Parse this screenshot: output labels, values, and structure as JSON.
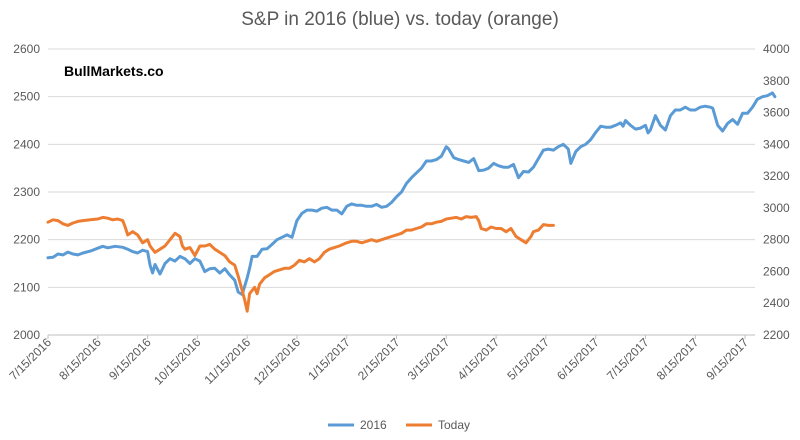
{
  "title": "S&P in 2016 (blue) vs. today (orange)",
  "watermark": "BullMarkets.co",
  "chart_data": {
    "type": "line",
    "title": "S&P in 2016 (blue) vs. today (orange)",
    "x_tick_labels": [
      "7/15/2016",
      "8/15/2016",
      "9/15/2016",
      "10/15/2016",
      "11/15/2016",
      "12/15/2016",
      "1/15/2017",
      "2/15/2017",
      "3/15/2017",
      "4/15/2017",
      "5/15/2017",
      "6/15/2017",
      "7/15/2017",
      "8/15/2017",
      "9/15/2017"
    ],
    "x_range": [
      0,
      14.2
    ],
    "y_left": {
      "range": [
        2000,
        2600
      ],
      "ticks": [
        2000,
        2100,
        2200,
        2300,
        2400,
        2500,
        2600
      ]
    },
    "y_right": {
      "range": [
        2200,
        4000
      ],
      "ticks": [
        2200,
        2400,
        2600,
        2800,
        3000,
        3200,
        3400,
        3600,
        3800,
        4000
      ]
    },
    "grid": true,
    "legend_position": "bottom",
    "series": [
      {
        "name": "2016",
        "color": "#5b9bd5",
        "axis": "left",
        "points": [
          [
            0.0,
            2162
          ],
          [
            0.1,
            2163
          ],
          [
            0.2,
            2170
          ],
          [
            0.3,
            2168
          ],
          [
            0.4,
            2174
          ],
          [
            0.5,
            2170
          ],
          [
            0.6,
            2168
          ],
          [
            0.7,
            2172
          ],
          [
            0.85,
            2176
          ],
          [
            1.0,
            2182
          ],
          [
            1.1,
            2186
          ],
          [
            1.2,
            2183
          ],
          [
            1.35,
            2186
          ],
          [
            1.5,
            2184
          ],
          [
            1.6,
            2180
          ],
          [
            1.7,
            2175
          ],
          [
            1.8,
            2172
          ],
          [
            1.9,
            2178
          ],
          [
            2.0,
            2175
          ],
          [
            2.05,
            2146
          ],
          [
            2.1,
            2130
          ],
          [
            2.15,
            2148
          ],
          [
            2.25,
            2128
          ],
          [
            2.35,
            2150
          ],
          [
            2.45,
            2160
          ],
          [
            2.55,
            2155
          ],
          [
            2.65,
            2165
          ],
          [
            2.75,
            2160
          ],
          [
            2.85,
            2150
          ],
          [
            2.95,
            2160
          ],
          [
            3.05,
            2155
          ],
          [
            3.15,
            2133
          ],
          [
            3.25,
            2139
          ],
          [
            3.35,
            2140
          ],
          [
            3.45,
            2130
          ],
          [
            3.55,
            2139
          ],
          [
            3.65,
            2126
          ],
          [
            3.75,
            2115
          ],
          [
            3.82,
            2090
          ],
          [
            3.9,
            2085
          ],
          [
            4.0,
            2120
          ],
          [
            4.05,
            2140
          ],
          [
            4.1,
            2165
          ],
          [
            4.2,
            2165
          ],
          [
            4.3,
            2180
          ],
          [
            4.4,
            2181
          ],
          [
            4.5,
            2190
          ],
          [
            4.6,
            2200
          ],
          [
            4.7,
            2205
          ],
          [
            4.8,
            2210
          ],
          [
            4.9,
            2205
          ],
          [
            5.0,
            2240
          ],
          [
            5.1,
            2255
          ],
          [
            5.2,
            2262
          ],
          [
            5.3,
            2262
          ],
          [
            5.4,
            2260
          ],
          [
            5.5,
            2266
          ],
          [
            5.6,
            2268
          ],
          [
            5.7,
            2262
          ],
          [
            5.8,
            2262
          ],
          [
            5.9,
            2254
          ],
          [
            6.0,
            2270
          ],
          [
            6.1,
            2275
          ],
          [
            6.2,
            2272
          ],
          [
            6.3,
            2272
          ],
          [
            6.4,
            2270
          ],
          [
            6.5,
            2270
          ],
          [
            6.6,
            2274
          ],
          [
            6.7,
            2268
          ],
          [
            6.8,
            2270
          ],
          [
            6.9,
            2278
          ],
          [
            7.0,
            2290
          ],
          [
            7.1,
            2300
          ],
          [
            7.2,
            2318
          ],
          [
            7.3,
            2330
          ],
          [
            7.4,
            2340
          ],
          [
            7.5,
            2350
          ],
          [
            7.6,
            2365
          ],
          [
            7.7,
            2365
          ],
          [
            7.8,
            2368
          ],
          [
            7.9,
            2375
          ],
          [
            8.0,
            2395
          ],
          [
            8.05,
            2390
          ],
          [
            8.15,
            2372
          ],
          [
            8.25,
            2368
          ],
          [
            8.35,
            2365
          ],
          [
            8.45,
            2362
          ],
          [
            8.55,
            2370
          ],
          [
            8.65,
            2345
          ],
          [
            8.75,
            2346
          ],
          [
            8.85,
            2350
          ],
          [
            8.95,
            2360
          ],
          [
            9.05,
            2355
          ],
          [
            9.15,
            2352
          ],
          [
            9.25,
            2352
          ],
          [
            9.35,
            2358
          ],
          [
            9.45,
            2330
          ],
          [
            9.55,
            2343
          ],
          [
            9.65,
            2342
          ],
          [
            9.75,
            2352
          ],
          [
            9.85,
            2370
          ],
          [
            9.95,
            2388
          ],
          [
            10.05,
            2390
          ],
          [
            10.15,
            2388
          ],
          [
            10.25,
            2395
          ],
          [
            10.35,
            2400
          ],
          [
            10.45,
            2390
          ],
          [
            10.5,
            2360
          ],
          [
            10.6,
            2385
          ],
          [
            10.7,
            2395
          ],
          [
            10.8,
            2400
          ],
          [
            10.9,
            2410
          ],
          [
            11.0,
            2425
          ],
          [
            11.1,
            2438
          ],
          [
            11.2,
            2436
          ],
          [
            11.3,
            2436
          ],
          [
            11.4,
            2440
          ],
          [
            11.5,
            2445
          ],
          [
            11.55,
            2438
          ],
          [
            11.6,
            2450
          ],
          [
            11.7,
            2440
          ],
          [
            11.8,
            2432
          ],
          [
            11.9,
            2434
          ],
          [
            12.0,
            2440
          ],
          [
            12.05,
            2424
          ],
          [
            12.1,
            2430
          ],
          [
            12.2,
            2460
          ],
          [
            12.3,
            2440
          ],
          [
            12.4,
            2430
          ],
          [
            12.5,
            2460
          ],
          [
            12.6,
            2472
          ],
          [
            12.7,
            2472
          ],
          [
            12.8,
            2478
          ],
          [
            12.9,
            2472
          ],
          [
            13.0,
            2472
          ],
          [
            13.1,
            2478
          ],
          [
            13.2,
            2480
          ],
          [
            13.3,
            2478
          ],
          [
            13.35,
            2476
          ],
          [
            13.45,
            2440
          ],
          [
            13.55,
            2428
          ],
          [
            13.65,
            2444
          ],
          [
            13.75,
            2452
          ],
          [
            13.85,
            2442
          ],
          [
            13.95,
            2465
          ],
          [
            14.05,
            2465
          ],
          [
            14.15,
            2478
          ],
          [
            14.25,
            2495
          ],
          [
            14.35,
            2500
          ],
          [
            14.45,
            2502
          ],
          [
            14.55,
            2508
          ],
          [
            14.6,
            2500
          ]
        ]
      },
      {
        "name": "Today",
        "color": "#ed7d31",
        "axis": "right",
        "points": [
          [
            0.0,
            2910
          ],
          [
            0.1,
            2925
          ],
          [
            0.2,
            2920
          ],
          [
            0.3,
            2900
          ],
          [
            0.4,
            2890
          ],
          [
            0.5,
            2905
          ],
          [
            0.6,
            2915
          ],
          [
            0.7,
            2920
          ],
          [
            0.85,
            2925
          ],
          [
            1.0,
            2930
          ],
          [
            1.1,
            2940
          ],
          [
            1.2,
            2935
          ],
          [
            1.3,
            2925
          ],
          [
            1.4,
            2930
          ],
          [
            1.5,
            2920
          ],
          [
            1.55,
            2880
          ],
          [
            1.6,
            2830
          ],
          [
            1.7,
            2850
          ],
          [
            1.8,
            2830
          ],
          [
            1.9,
            2780
          ],
          [
            2.0,
            2800
          ],
          [
            2.05,
            2760
          ],
          [
            2.15,
            2720
          ],
          [
            2.25,
            2740
          ],
          [
            2.35,
            2760
          ],
          [
            2.45,
            2800
          ],
          [
            2.55,
            2840
          ],
          [
            2.65,
            2820
          ],
          [
            2.7,
            2760
          ],
          [
            2.75,
            2740
          ],
          [
            2.85,
            2750
          ],
          [
            2.95,
            2700
          ],
          [
            3.05,
            2760
          ],
          [
            3.15,
            2760
          ],
          [
            3.25,
            2770
          ],
          [
            3.35,
            2740
          ],
          [
            3.45,
            2720
          ],
          [
            3.55,
            2700
          ],
          [
            3.65,
            2660
          ],
          [
            3.75,
            2640
          ],
          [
            3.82,
            2570
          ],
          [
            3.9,
            2480
          ],
          [
            3.95,
            2420
          ],
          [
            4.0,
            2350
          ],
          [
            4.05,
            2460
          ],
          [
            4.1,
            2480
          ],
          [
            4.15,
            2500
          ],
          [
            4.2,
            2460
          ],
          [
            4.25,
            2520
          ],
          [
            4.35,
            2560
          ],
          [
            4.45,
            2580
          ],
          [
            4.55,
            2600
          ],
          [
            4.65,
            2610
          ],
          [
            4.75,
            2620
          ],
          [
            4.85,
            2620
          ],
          [
            4.95,
            2640
          ],
          [
            5.05,
            2670
          ],
          [
            5.15,
            2660
          ],
          [
            5.25,
            2680
          ],
          [
            5.35,
            2660
          ],
          [
            5.45,
            2680
          ],
          [
            5.55,
            2720
          ],
          [
            5.65,
            2740
          ],
          [
            5.75,
            2750
          ],
          [
            5.85,
            2760
          ],
          [
            6.0,
            2780
          ],
          [
            6.1,
            2790
          ],
          [
            6.2,
            2790
          ],
          [
            6.3,
            2780
          ],
          [
            6.4,
            2790
          ],
          [
            6.5,
            2800
          ],
          [
            6.6,
            2790
          ],
          [
            6.7,
            2800
          ],
          [
            6.8,
            2810
          ],
          [
            6.9,
            2820
          ],
          [
            7.0,
            2830
          ],
          [
            7.1,
            2840
          ],
          [
            7.2,
            2860
          ],
          [
            7.3,
            2860
          ],
          [
            7.4,
            2870
          ],
          [
            7.5,
            2880
          ],
          [
            7.6,
            2900
          ],
          [
            7.7,
            2900
          ],
          [
            7.8,
            2910
          ],
          [
            7.9,
            2915
          ],
          [
            8.0,
            2930
          ],
          [
            8.1,
            2935
          ],
          [
            8.2,
            2940
          ],
          [
            8.3,
            2930
          ],
          [
            8.4,
            2945
          ],
          [
            8.5,
            2940
          ],
          [
            8.6,
            2945
          ],
          [
            8.65,
            2920
          ],
          [
            8.7,
            2870
          ],
          [
            8.8,
            2860
          ],
          [
            8.9,
            2880
          ],
          [
            9.0,
            2870
          ],
          [
            9.1,
            2870
          ],
          [
            9.2,
            2850
          ],
          [
            9.3,
            2870
          ],
          [
            9.4,
            2820
          ],
          [
            9.5,
            2800
          ],
          [
            9.6,
            2780
          ],
          [
            9.7,
            2820
          ],
          [
            9.75,
            2850
          ],
          [
            9.85,
            2860
          ],
          [
            9.95,
            2895
          ],
          [
            10.05,
            2890
          ],
          [
            10.15,
            2890
          ]
        ]
      }
    ]
  }
}
